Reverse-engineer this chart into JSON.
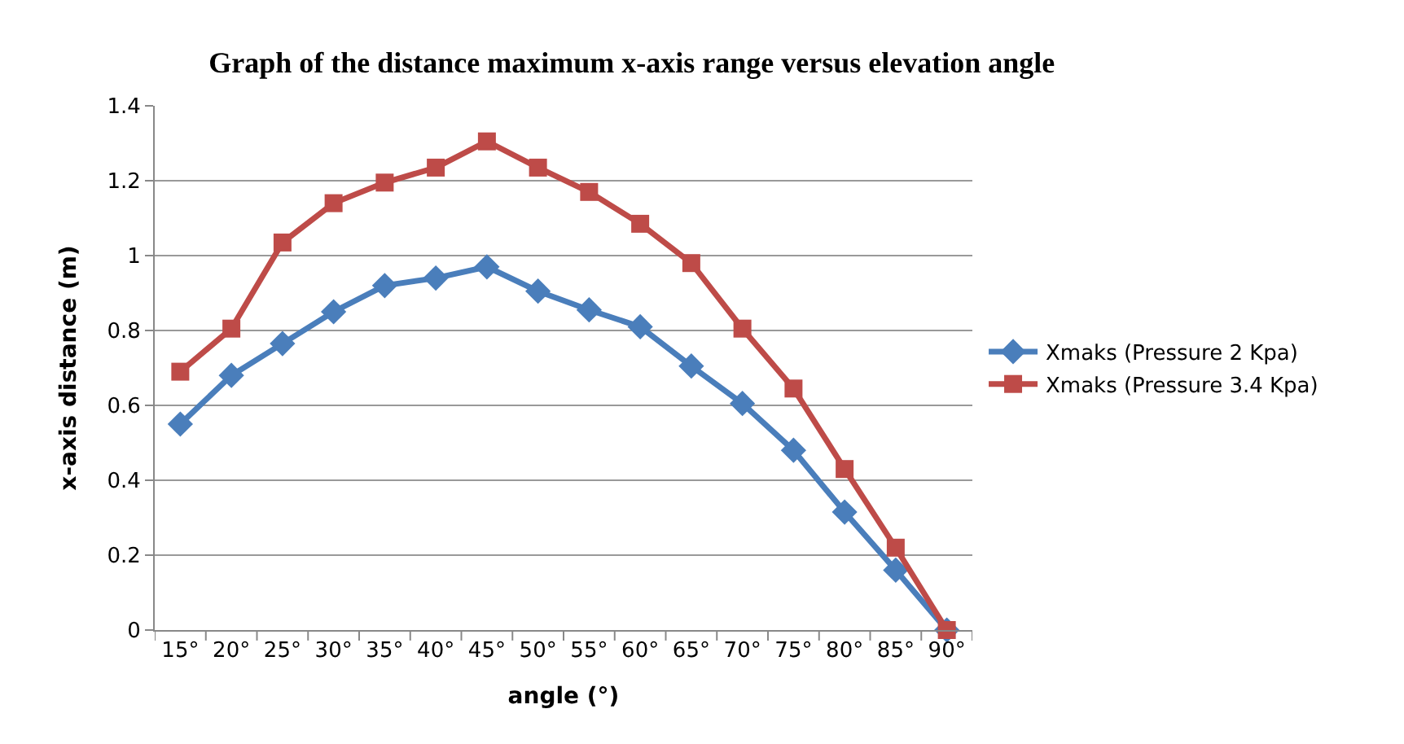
{
  "chart_data": {
    "type": "line",
    "title": "Graph of the distance maximum x-axis range versus elevation angle",
    "xlabel": "angle (°)",
    "ylabel": "x-axis distance (m)",
    "categories": [
      "15°",
      "20°",
      "25°",
      "30°",
      "35°",
      "40°",
      "45°",
      "50°",
      "55°",
      "60°",
      "65°",
      "70°",
      "75°",
      "80°",
      "85°",
      "90°"
    ],
    "series": [
      {
        "name": "Xmaks (Pressure 2 Kpa)",
        "color": "#4a7ebb",
        "marker": "diamond",
        "values": [
          0.55,
          0.68,
          0.765,
          0.85,
          0.92,
          0.94,
          0.97,
          0.905,
          0.855,
          0.81,
          0.705,
          0.605,
          0.48,
          0.315,
          0.16,
          0
        ]
      },
      {
        "name": "Xmaks (Pressure 3.4 Kpa)",
        "color": "#be4b48",
        "marker": "square",
        "values": [
          0.69,
          0.805,
          1.035,
          1.14,
          1.195,
          1.235,
          1.305,
          1.235,
          1.17,
          1.085,
          0.98,
          0.805,
          0.645,
          0.43,
          0.22,
          0
        ]
      }
    ],
    "ylim": [
      0,
      1.4
    ],
    "yticks": [
      0,
      0.2,
      0.4,
      0.6,
      0.8,
      1,
      1.2,
      1.4
    ],
    "grid": "y",
    "legend": "right",
    "line_style": "solid"
  }
}
